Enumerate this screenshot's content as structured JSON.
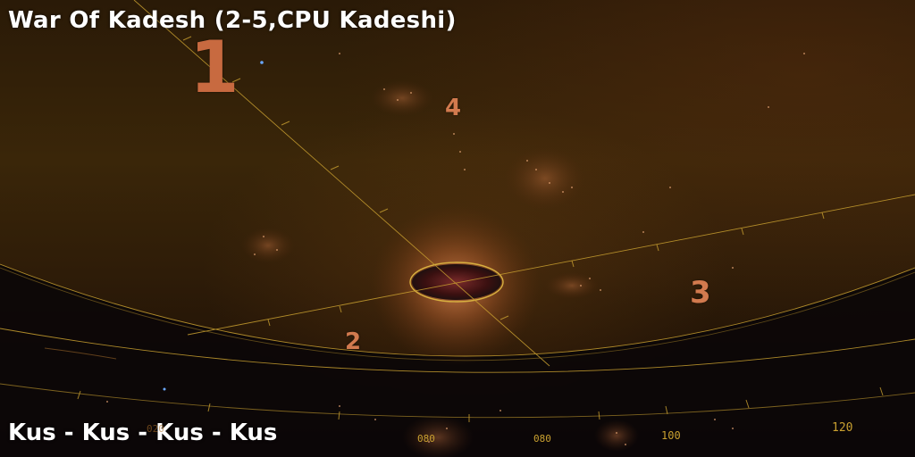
{
  "title": "War Of Kadesh (2-5,CPU Kadeshi)",
  "subtitle": "Kus - Kus - Kus - Kus",
  "markers": {
    "m1": "1",
    "m2": "2",
    "m3": "3",
    "m4": "4"
  },
  "scale_ticks": {
    "t1": "080",
    "t2": "080",
    "t3": "100",
    "t4": "120",
    "t5": "020"
  },
  "colors": {
    "marker": "#d27a4e",
    "grid": "#c9a030",
    "title": "#ffffff"
  }
}
